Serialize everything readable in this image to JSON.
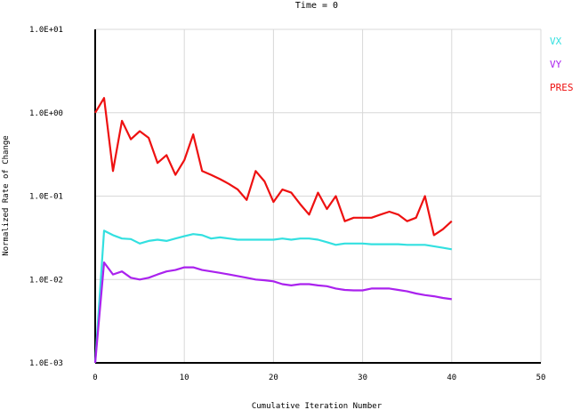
{
  "chart_data": {
    "type": "line",
    "title": "Time = 0",
    "xlabel": "Cumulative Iteration Number",
    "ylabel": "Normalized Rate of Change",
    "xlim": [
      0,
      50
    ],
    "ylim": [
      0.001,
      10
    ],
    "yscale": "log",
    "grid": true,
    "legend_position": "top-right",
    "x_ticks": [
      0,
      10,
      20,
      30,
      40,
      50
    ],
    "x_tick_labels": [
      "0",
      "10",
      "20",
      "30",
      "40",
      "50"
    ],
    "y_ticks": [
      10,
      1,
      0.1,
      0.01,
      0.001
    ],
    "y_tick_labels": [
      "1.0E+01",
      "1.0E+00",
      "1.0E-01",
      "1.0E-02",
      "1.0E-03"
    ],
    "series": [
      {
        "name": "VX",
        "color": "#33e0e0",
        "x": [
          0,
          1,
          2,
          3,
          4,
          5,
          6,
          7,
          8,
          9,
          10,
          11,
          12,
          13,
          14,
          15,
          16,
          17,
          18,
          19,
          20,
          21,
          22,
          23,
          24,
          25,
          26,
          27,
          28,
          29,
          30,
          31,
          32,
          33,
          34,
          35,
          36,
          37,
          38,
          39,
          40
        ],
        "values": [
          0.001,
          0.0385,
          0.034,
          0.031,
          0.0305,
          0.027,
          0.029,
          0.03,
          0.029,
          0.031,
          0.033,
          0.035,
          0.034,
          0.031,
          0.032,
          0.031,
          0.03,
          0.03,
          0.03,
          0.03,
          0.03,
          0.031,
          0.03,
          0.031,
          0.031,
          0.03,
          0.028,
          0.026,
          0.027,
          0.027,
          0.027,
          0.0265,
          0.0265,
          0.0265,
          0.0265,
          0.026,
          0.026,
          0.026,
          0.025,
          0.024,
          0.023
        ]
      },
      {
        "name": "VY",
        "color": "#aa22ee",
        "x": [
          0,
          1,
          2,
          3,
          4,
          5,
          6,
          7,
          8,
          9,
          10,
          11,
          12,
          13,
          14,
          15,
          16,
          17,
          18,
          19,
          20,
          21,
          22,
          23,
          24,
          25,
          26,
          27,
          28,
          29,
          30,
          31,
          32,
          33,
          34,
          35,
          36,
          37,
          38,
          39,
          40
        ],
        "values": [
          0.001,
          0.016,
          0.0115,
          0.0125,
          0.0105,
          0.01,
          0.0105,
          0.0115,
          0.0125,
          0.013,
          0.014,
          0.014,
          0.013,
          0.0125,
          0.012,
          0.0115,
          0.011,
          0.0105,
          0.01,
          0.0098,
          0.0095,
          0.0088,
          0.0085,
          0.0088,
          0.0088,
          0.0085,
          0.0083,
          0.0078,
          0.0075,
          0.0074,
          0.0074,
          0.0078,
          0.0078,
          0.0078,
          0.0075,
          0.0072,
          0.0068,
          0.0065,
          0.0063,
          0.006,
          0.0058
        ]
      },
      {
        "name": "PRES",
        "color": "#ee1111",
        "x": [
          0,
          1,
          2,
          3,
          4,
          5,
          6,
          7,
          8,
          9,
          10,
          11,
          12,
          13,
          14,
          15,
          16,
          17,
          18,
          19,
          20,
          21,
          22,
          23,
          24,
          25,
          26,
          27,
          28,
          29,
          30,
          31,
          32,
          33,
          34,
          35,
          36,
          37,
          38,
          39,
          40
        ],
        "values": [
          1.0,
          1.5,
          0.2,
          0.8,
          0.48,
          0.6,
          0.5,
          0.25,
          0.31,
          0.18,
          0.27,
          0.55,
          0.2,
          0.18,
          0.16,
          0.14,
          0.12,
          0.09,
          0.2,
          0.15,
          0.085,
          0.12,
          0.11,
          0.08,
          0.06,
          0.11,
          0.07,
          0.1,
          0.05,
          0.055,
          0.055,
          0.055,
          0.06,
          0.065,
          0.06,
          0.05,
          0.055,
          0.1,
          0.034,
          0.04,
          0.05
        ]
      }
    ]
  }
}
